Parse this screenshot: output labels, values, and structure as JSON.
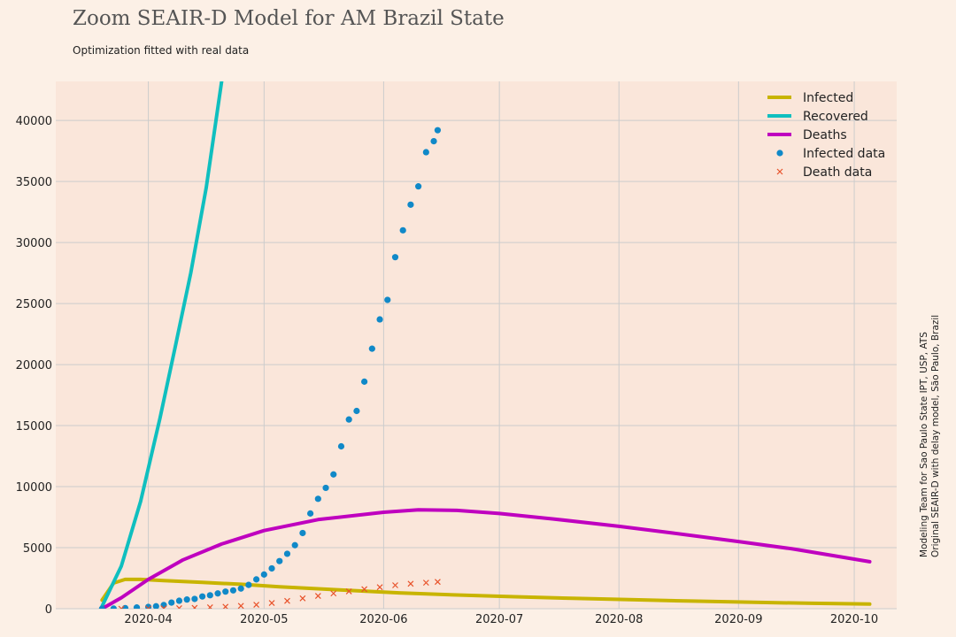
{
  "title": "Zoom SEAIR-D Model for AM Brazil State",
  "subtitle": "Optimization fitted with real data",
  "credit_line1": "Modeling Team for Sao Paulo State IPT, USP, ATS",
  "credit_line2": "Original SEAIR-D with delay model, São Paulo, Brazil",
  "colors": {
    "background": "#fcf0e6",
    "plot_background": "#fae6da",
    "grid": "#cccccc",
    "infected": "#c8b400",
    "recovered": "#0fbfbf",
    "deaths": "#bf00bf",
    "infected_data": "#1089c8",
    "death_data": "#e8522a"
  },
  "chart_data": {
    "type": "line",
    "x_axis": {
      "type": "date",
      "range": [
        "2020-03-08",
        "2020-10-12"
      ],
      "ticks": [
        "2020-04",
        "2020-05",
        "2020-06",
        "2020-07",
        "2020-08",
        "2020-09",
        "2020-10"
      ]
    },
    "y_axis": {
      "range": [
        0,
        43200
      ],
      "ticks": [
        "0",
        "5000",
        "10000",
        "15000",
        "20000",
        "25000",
        "30000",
        "35000",
        "40000"
      ]
    },
    "grid": true,
    "legend_position": "top-right",
    "series": [
      {
        "name": "Infected",
        "kind": "line",
        "color": "#c8b400",
        "points": [
          [
            "2020-03-20",
            700
          ],
          [
            "2020-03-23",
            2100
          ],
          [
            "2020-03-26",
            2400
          ],
          [
            "2020-03-30",
            2400
          ],
          [
            "2020-04-05",
            2300
          ],
          [
            "2020-04-15",
            2150
          ],
          [
            "2020-04-25",
            2000
          ],
          [
            "2020-05-05",
            1800
          ],
          [
            "2020-05-20",
            1550
          ],
          [
            "2020-06-05",
            1300
          ],
          [
            "2020-06-20",
            1120
          ],
          [
            "2020-07-05",
            980
          ],
          [
            "2020-07-20",
            850
          ],
          [
            "2020-08-05",
            730
          ],
          [
            "2020-08-20",
            620
          ],
          [
            "2020-09-05",
            520
          ],
          [
            "2020-09-20",
            440
          ],
          [
            "2020-10-05",
            380
          ]
        ]
      },
      {
        "name": "Recovered",
        "kind": "line",
        "color": "#0fbfbf",
        "points": [
          [
            "2020-03-20",
            200
          ],
          [
            "2020-03-25",
            3500
          ],
          [
            "2020-03-30",
            8800
          ],
          [
            "2020-04-04",
            15600
          ],
          [
            "2020-04-08",
            21500
          ],
          [
            "2020-04-12",
            27500
          ],
          [
            "2020-04-16",
            34500
          ],
          [
            "2020-04-20",
            43200
          ]
        ]
      },
      {
        "name": "Deaths",
        "kind": "line",
        "color": "#bf00bf",
        "points": [
          [
            "2020-03-20",
            0
          ],
          [
            "2020-03-25",
            900
          ],
          [
            "2020-04-01",
            2400
          ],
          [
            "2020-04-10",
            4000
          ],
          [
            "2020-04-20",
            5300
          ],
          [
            "2020-05-01",
            6400
          ],
          [
            "2020-05-15",
            7300
          ],
          [
            "2020-06-01",
            7900
          ],
          [
            "2020-06-10",
            8100
          ],
          [
            "2020-06-20",
            8050
          ],
          [
            "2020-07-01",
            7800
          ],
          [
            "2020-07-15",
            7350
          ],
          [
            "2020-08-01",
            6750
          ],
          [
            "2020-08-15",
            6200
          ],
          [
            "2020-09-01",
            5500
          ],
          [
            "2020-09-15",
            4900
          ],
          [
            "2020-10-05",
            3850
          ]
        ]
      },
      {
        "name": "Infected data",
        "kind": "scatter",
        "color": "#1089c8",
        "points": [
          [
            "2020-03-20",
            0
          ],
          [
            "2020-03-23",
            10
          ],
          [
            "2020-03-26",
            50
          ],
          [
            "2020-03-29",
            100
          ],
          [
            "2020-04-01",
            150
          ],
          [
            "2020-04-03",
            200
          ],
          [
            "2020-04-05",
            300
          ],
          [
            "2020-04-07",
            500
          ],
          [
            "2020-04-09",
            650
          ],
          [
            "2020-04-11",
            750
          ],
          [
            "2020-04-13",
            800
          ],
          [
            "2020-04-15",
            1000
          ],
          [
            "2020-04-17",
            1100
          ],
          [
            "2020-04-19",
            1250
          ],
          [
            "2020-04-21",
            1400
          ],
          [
            "2020-04-23",
            1500
          ],
          [
            "2020-04-25",
            1650
          ],
          [
            "2020-04-27",
            1950
          ],
          [
            "2020-04-29",
            2400
          ],
          [
            "2020-05-01",
            2800
          ],
          [
            "2020-05-03",
            3300
          ],
          [
            "2020-05-05",
            3900
          ],
          [
            "2020-05-07",
            4500
          ],
          [
            "2020-05-09",
            5200
          ],
          [
            "2020-05-11",
            6200
          ],
          [
            "2020-05-13",
            7800
          ],
          [
            "2020-05-15",
            9000
          ],
          [
            "2020-05-17",
            9900
          ],
          [
            "2020-05-19",
            11000
          ],
          [
            "2020-05-21",
            13300
          ],
          [
            "2020-05-23",
            15500
          ],
          [
            "2020-05-25",
            16200
          ],
          [
            "2020-05-27",
            18600
          ],
          [
            "2020-05-29",
            21300
          ],
          [
            "2020-05-31",
            23700
          ],
          [
            "2020-06-02",
            25300
          ],
          [
            "2020-06-04",
            28800
          ],
          [
            "2020-06-06",
            31000
          ],
          [
            "2020-06-08",
            33100
          ],
          [
            "2020-06-10",
            34600
          ],
          [
            "2020-06-12",
            37400
          ],
          [
            "2020-06-14",
            38300
          ],
          [
            "2020-06-15",
            39200
          ]
        ]
      },
      {
        "name": "Death data",
        "kind": "scatter",
        "color": "#e8522a",
        "points": [
          [
            "2020-03-25",
            0
          ],
          [
            "2020-04-01",
            10
          ],
          [
            "2020-04-05",
            20
          ],
          [
            "2020-04-09",
            40
          ],
          [
            "2020-04-13",
            70
          ],
          [
            "2020-04-17",
            110
          ],
          [
            "2020-04-21",
            160
          ],
          [
            "2020-04-25",
            230
          ],
          [
            "2020-04-29",
            320
          ],
          [
            "2020-05-03",
            470
          ],
          [
            "2020-05-07",
            640
          ],
          [
            "2020-05-11",
            850
          ],
          [
            "2020-05-15",
            1050
          ],
          [
            "2020-05-19",
            1250
          ],
          [
            "2020-05-23",
            1420
          ],
          [
            "2020-05-27",
            1600
          ],
          [
            "2020-05-31",
            1760
          ],
          [
            "2020-06-04",
            1920
          ],
          [
            "2020-06-08",
            2040
          ],
          [
            "2020-06-12",
            2130
          ],
          [
            "2020-06-15",
            2200
          ]
        ]
      }
    ]
  }
}
